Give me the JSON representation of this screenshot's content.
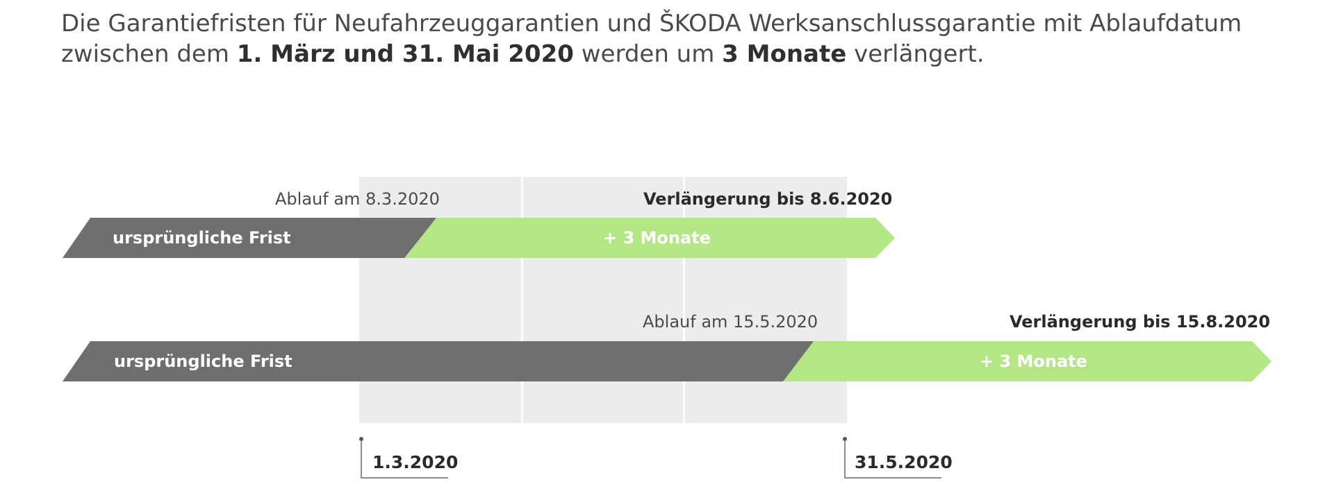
{
  "intro": {
    "line1": "Die Garantiefristen für Neufahrzeuggarantien und ŠKODA Werksanschlussgarantie mit Ablaufdatum",
    "line2_a": "zwischen dem ",
    "line2_bold1": "1. März und 31. Mai 2020",
    "line2_b": " werden um ",
    "line2_bold2": "3 Monate",
    "line2_c": " verlängert."
  },
  "colors": {
    "original_period": "#6f6f6f",
    "extension": "#b5e685",
    "affected_window": "#ececec"
  },
  "affected_window": {
    "start": "1.3.2020",
    "end": "31.5.2020"
  },
  "rows": [
    {
      "expiry_label": "Ablauf am 8.3.2020",
      "extension_label": "Verlängerung bis 8.6.2020",
      "original_bar_label": "ursprüngliche Frist",
      "extension_bar_label": "+ 3 Monate"
    },
    {
      "expiry_label": "Ablauf am 15.5.2020",
      "extension_label": "Verlängerung bis 15.8.2020",
      "original_bar_label": "ursprüngliche Frist",
      "extension_bar_label": "+ 3 Monate"
    }
  ]
}
